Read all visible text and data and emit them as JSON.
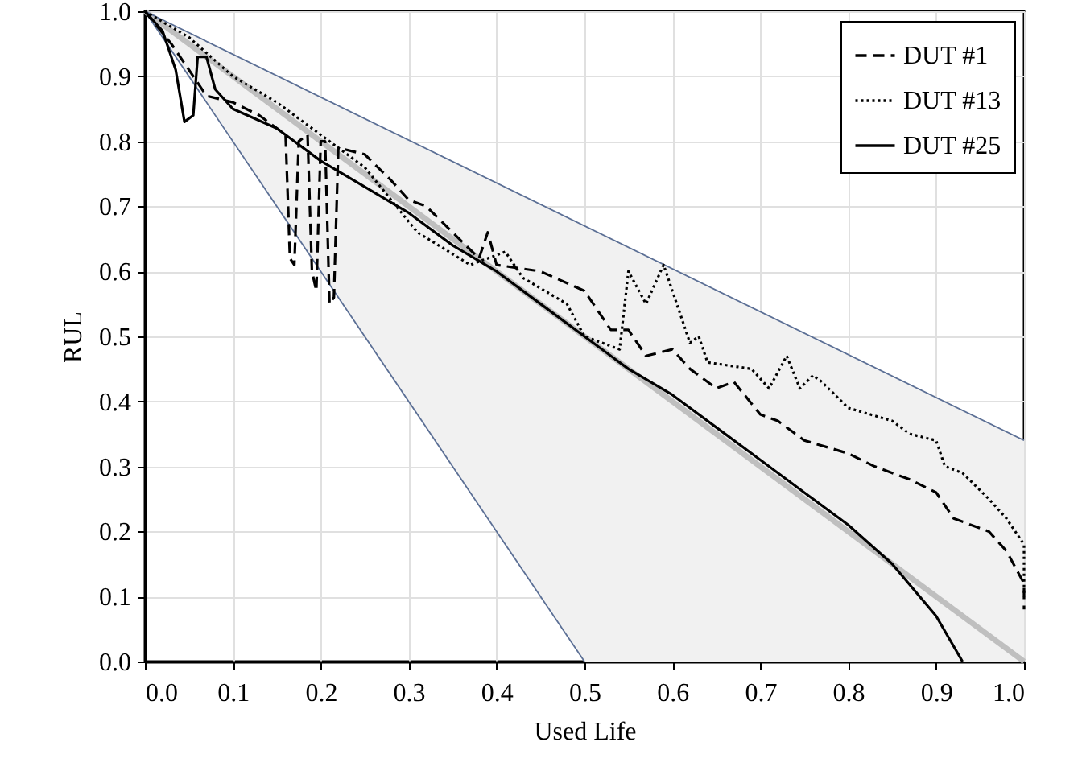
{
  "chart_data": {
    "type": "line",
    "xlabel": "Used Life",
    "ylabel": "RUL",
    "xlim": [
      0,
      1
    ],
    "ylim": [
      0,
      1
    ],
    "xticks": [
      {
        "value": 0,
        "label": "0.0"
      },
      0.1,
      0.2,
      0.3,
      0.4,
      0.5,
      0.6,
      0.7,
      0.8,
      0.9,
      {
        "value": 1,
        "label": "1.0"
      }
    ],
    "yticks": [
      {
        "value": 0,
        "label": "0.0"
      },
      0.1,
      0.2,
      0.3,
      0.4,
      0.5,
      0.6,
      0.7,
      0.8,
      0.9,
      {
        "value": 1,
        "label": "1.0"
      }
    ],
    "grid": true,
    "legend": "top right",
    "series": [
      {
        "color": "#bfbfbf",
        "line_style": "solid",
        "x": [
          0,
          0.5,
          1
        ],
        "values": [
          1,
          0.5,
          0
        ],
        "lower": [
          1,
          0,
          0
        ],
        "upper": [
          1,
          0.67,
          0.34
        ]
      },
      {
        "color": "#5b6f95",
        "line_style": "solid",
        "x": [
          0,
          1
        ],
        "values": [
          1,
          0.34
        ]
      },
      {
        "color": "#5b6f95",
        "line_style": "solid",
        "x": [
          0,
          0.5
        ],
        "values": [
          1,
          0
        ]
      },
      {
        "name": "DUT #1",
        "color": "#000000",
        "line_style": "dashed",
        "x": [
          0,
          0.03,
          0.05,
          0.07,
          0.1,
          0.13,
          0.16,
          0.165,
          0.17,
          0.175,
          0.185,
          0.19,
          0.195,
          0.2,
          0.205,
          0.21,
          0.215,
          0.22,
          0.25,
          0.28,
          0.3,
          0.32,
          0.35,
          0.38,
          0.39,
          0.4,
          0.45,
          0.5,
          0.53,
          0.55,
          0.57,
          0.6,
          0.62,
          0.65,
          0.67,
          0.7,
          0.72,
          0.75,
          0.8,
          0.83,
          0.87,
          0.9,
          0.92,
          0.96,
          0.98,
          1,
          1
        ],
        "values": [
          1,
          0.95,
          0.91,
          0.87,
          0.86,
          0.84,
          0.81,
          0.62,
          0.61,
          0.8,
          0.81,
          0.6,
          0.57,
          0.8,
          0.8,
          0.55,
          0.56,
          0.79,
          0.78,
          0.74,
          0.71,
          0.7,
          0.66,
          0.62,
          0.66,
          0.61,
          0.6,
          0.57,
          0.51,
          0.51,
          0.47,
          0.48,
          0.45,
          0.42,
          0.43,
          0.38,
          0.37,
          0.34,
          0.32,
          0.3,
          0.28,
          0.26,
          0.22,
          0.2,
          0.17,
          0.12,
          0.08
        ]
      },
      {
        "name": "DUT #13",
        "color": "#000000",
        "line_style": "dotted",
        "x": [
          0,
          0.05,
          0.1,
          0.15,
          0.2,
          0.25,
          0.31,
          0.37,
          0.41,
          0.43,
          0.48,
          0.5,
          0.54,
          0.55,
          0.57,
          0.59,
          0.62,
          0.63,
          0.64,
          0.69,
          0.71,
          0.73,
          0.745,
          0.76,
          0.77,
          0.8,
          0.85,
          0.87,
          0.9,
          0.91,
          0.93,
          0.96,
          0.98,
          1,
          1
        ],
        "values": [
          1,
          0.96,
          0.9,
          0.86,
          0.81,
          0.76,
          0.66,
          0.61,
          0.63,
          0.59,
          0.55,
          0.5,
          0.48,
          0.6,
          0.55,
          0.61,
          0.49,
          0.5,
          0.46,
          0.45,
          0.42,
          0.47,
          0.42,
          0.44,
          0.43,
          0.39,
          0.37,
          0.35,
          0.34,
          0.3,
          0.29,
          0.25,
          0.22,
          0.18,
          0.1
        ]
      },
      {
        "name": "DUT #25",
        "color": "#000000",
        "line_style": "solid",
        "x": [
          0,
          0.02,
          0.035,
          0.045,
          0.055,
          0.06,
          0.07,
          0.08,
          0.1,
          0.15,
          0.2,
          0.25,
          0.3,
          0.35,
          0.4,
          0.45,
          0.5,
          0.55,
          0.6,
          0.65,
          0.7,
          0.75,
          0.8,
          0.85,
          0.9,
          0.93
        ],
        "values": [
          1,
          0.97,
          0.91,
          0.83,
          0.84,
          0.93,
          0.93,
          0.88,
          0.85,
          0.82,
          0.77,
          0.73,
          0.69,
          0.64,
          0.6,
          0.55,
          0.5,
          0.45,
          0.41,
          0.36,
          0.31,
          0.26,
          0.21,
          0.15,
          0.07,
          0
        ]
      }
    ]
  }
}
